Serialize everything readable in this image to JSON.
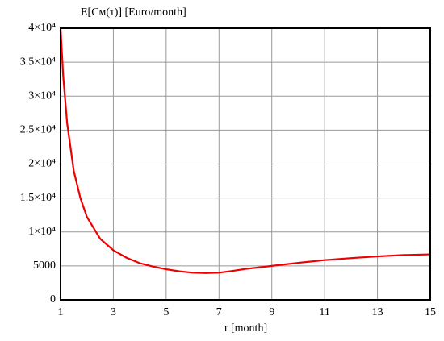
{
  "chart_data": {
    "type": "line",
    "y_label": "E[Cм(τ)] [Euro/month]",
    "x_label": "τ [month]",
    "x": [
      1,
      1.1,
      1.25,
      1.5,
      1.75,
      2,
      2.5,
      3,
      3.5,
      4,
      4.5,
      5,
      5.5,
      6,
      6.5,
      7,
      7.5,
      8,
      9,
      10,
      11,
      12,
      13,
      14,
      15
    ],
    "series": [
      {
        "color": "#ee0000",
        "values": [
          40000,
          33000,
          26000,
          19000,
          15000,
          12200,
          9000,
          7300,
          6200,
          5400,
          4900,
          4500,
          4200,
          4000,
          3950,
          4000,
          4250,
          4550,
          5000,
          5450,
          5850,
          6150,
          6400,
          6600,
          6700
        ]
      }
    ],
    "xlim": [
      1,
      15
    ],
    "xticks": [
      1,
      3,
      5,
      7,
      9,
      11,
      13,
      15
    ],
    "ylim": [
      0,
      40000
    ],
    "yticks": [
      0,
      5000,
      {
        "value": 10000,
        "label": "1×10⁴"
      },
      {
        "value": 15000,
        "label": "1.5×10⁴"
      },
      {
        "value": 20000,
        "label": "2×10⁴"
      },
      {
        "value": 25000,
        "label": "2.5×10⁴"
      },
      {
        "value": 30000,
        "label": "3×10⁴"
      },
      {
        "value": 35000,
        "label": "3.5×10⁴"
      },
      {
        "value": 40000,
        "label": "4×10⁴"
      }
    ],
    "grid": true
  }
}
